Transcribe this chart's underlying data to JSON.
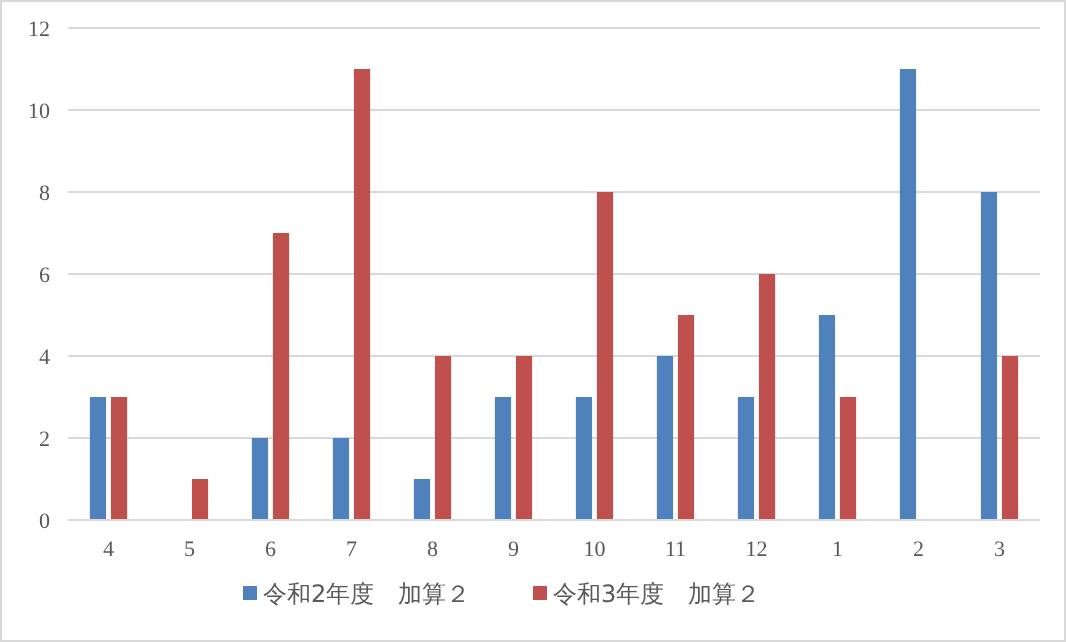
{
  "chart_data": {
    "type": "bar",
    "categories": [
      "4",
      "5",
      "6",
      "7",
      "8",
      "9",
      "10",
      "11",
      "12",
      "1",
      "2",
      "3"
    ],
    "series": [
      {
        "name": "令和2年度　加算２",
        "color": "#4f81bd",
        "values": [
          3,
          0,
          2,
          2,
          1,
          3,
          3,
          4,
          3,
          5,
          11,
          8
        ]
      },
      {
        "name": "令和3年度　加算２",
        "color": "#c0504d",
        "values": [
          3,
          1,
          7,
          11,
          4,
          4,
          8,
          5,
          6,
          3,
          0,
          4
        ]
      }
    ],
    "ylim": [
      0,
      12
    ],
    "yticks": [
      0,
      2,
      4,
      6,
      8,
      10,
      12
    ],
    "grid": "y",
    "legend": "bottom"
  }
}
